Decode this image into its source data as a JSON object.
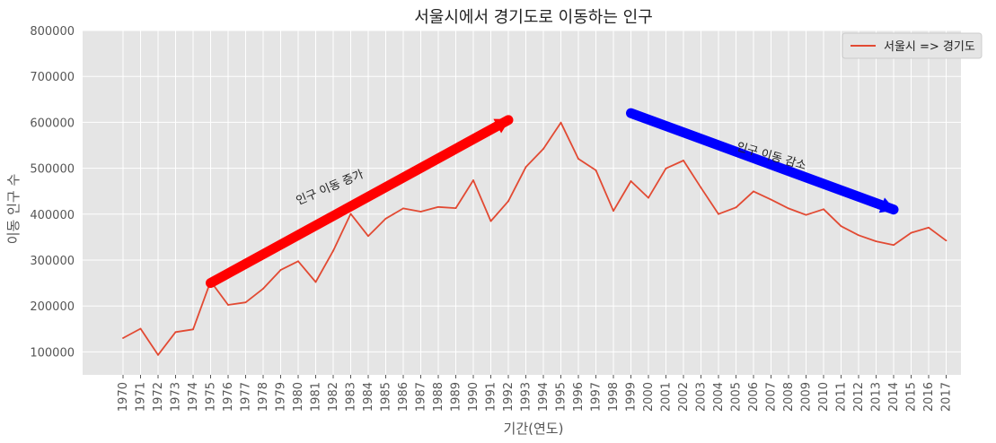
{
  "chart_data": {
    "type": "line",
    "title": "서울시에서 경기도로 이동하는 인구",
    "xlabel": "기간(연도)",
    "ylabel": "이동 인구 수",
    "ylim": [
      50000,
      800000
    ],
    "yticks": [
      100000,
      200000,
      300000,
      400000,
      500000,
      600000,
      700000,
      800000
    ],
    "grid": true,
    "legend_position": "top-right",
    "categories": [
      "1970",
      "1971",
      "1972",
      "1973",
      "1974",
      "1975",
      "1976",
      "1977",
      "1978",
      "1979",
      "1980",
      "1981",
      "1982",
      "1983",
      "1984",
      "1985",
      "1986",
      "1987",
      "1988",
      "1989",
      "1990",
      "1991",
      "1992",
      "1993",
      "1994",
      "1995",
      "1996",
      "1997",
      "1998",
      "1999",
      "2000",
      "2001",
      "2002",
      "2003",
      "2004",
      "2005",
      "2006",
      "2007",
      "2008",
      "2009",
      "2010",
      "2011",
      "2012",
      "2013",
      "2014",
      "2015",
      "2016",
      "2017"
    ],
    "series": [
      {
        "name": "서울시 => 경기도",
        "color": "#E24A33",
        "values": [
          130149,
          150583,
          93333,
          143234,
          149045,
          253705,
          202276,
          207722,
          237684,
          278411,
          297539,
          252073,
          320174,
          400875,
          352238,
          390265,
          412535,
          405495,
          415540,
          412990,
          473889,
          384714,
          428344,
          502584,
          542204,
          599411,
          520566,
          495454,
          407050,
          471841,
          435573,
          499575,
          516765,
          457656,
          400206,
          414621,
          449632,
          431637,
          412408,
          398282,
          410735,
          373771,
          354135,
          340801,
          332785,
          359337,
          370760,
          342433
        ]
      }
    ],
    "annotations": [
      {
        "type": "arrow",
        "from": {
          "x": "1975",
          "y": 250000
        },
        "to": {
          "x": "1992",
          "y": 605000
        },
        "color": "#FF0000"
      },
      {
        "type": "arrow",
        "from": {
          "x": "1999",
          "y": 620000
        },
        "to": {
          "x": "2014",
          "y": 410000
        },
        "color": "#0000FF"
      },
      {
        "type": "text",
        "text": "인구 이동 증가",
        "at": {
          "x": "1980",
          "y": 420000
        },
        "rotation": 23
      },
      {
        "type": "text",
        "text": "인구 이동 감소",
        "at": {
          "x": "2005",
          "y": 540000
        },
        "rotation": -16
      }
    ],
    "style": {
      "plot_bg": "#E5E5E5",
      "grid_color": "#FFFFFF"
    }
  }
}
